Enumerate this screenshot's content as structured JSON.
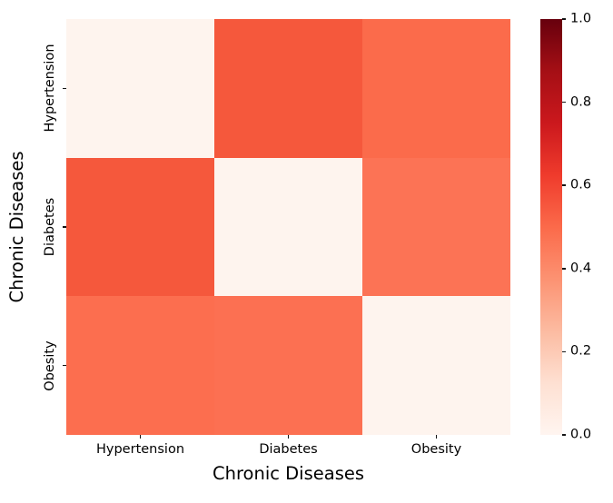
{
  "figure": {
    "background": "#ffffff",
    "text_color": "#000000"
  },
  "chart_data": {
    "type": "heatmap",
    "title": "",
    "xlabel": "Chronic Diseases",
    "ylabel": "Chronic Diseases",
    "categories": [
      "Hypertension",
      "Diabetes",
      "Obesity"
    ],
    "matrix": [
      [
        0.0,
        0.55,
        0.49
      ],
      [
        0.55,
        0.0,
        0.46
      ],
      [
        0.49,
        0.46,
        0.0
      ]
    ],
    "cell_colors": [
      [
        "#fef4ee",
        "#f5583c",
        "#fb6b4b"
      ],
      [
        "#f5583c",
        "#fef4ee",
        "#fc7355"
      ],
      [
        "#fc6e4f",
        "#fc7052",
        "#fef4ee"
      ]
    ],
    "colormap": {
      "name": "Reds",
      "stops": [
        {
          "value": 0.0,
          "color": "#fff5f0"
        },
        {
          "value": 0.125,
          "color": "#fee0d2"
        },
        {
          "value": 0.25,
          "color": "#fcbba1"
        },
        {
          "value": 0.375,
          "color": "#fc9272"
        },
        {
          "value": 0.5,
          "color": "#fb6a4a"
        },
        {
          "value": 0.625,
          "color": "#ef3b2c"
        },
        {
          "value": 0.75,
          "color": "#cb181d"
        },
        {
          "value": 0.875,
          "color": "#a50f15"
        },
        {
          "value": 1.0,
          "color": "#67000d"
        }
      ]
    },
    "colorbar": {
      "range": [
        0.0,
        1.0
      ],
      "ticks": [
        {
          "label": "1.0",
          "value": 1.0
        },
        {
          "label": "0.8",
          "value": 0.8
        },
        {
          "label": "0.6",
          "value": 0.6
        },
        {
          "label": "0.4",
          "value": 0.4
        },
        {
          "label": "0.2",
          "value": 0.2
        },
        {
          "label": "0.0",
          "value": 0.0
        }
      ]
    },
    "grid": false,
    "legend": "none"
  }
}
